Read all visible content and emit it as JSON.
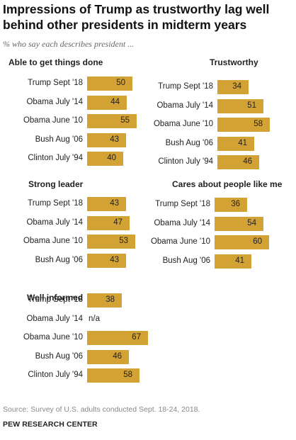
{
  "header": {
    "title": "Impressions of Trump as trustworthy lag well behind other presidents in midterm years",
    "subtitle": "% who say each describes president ..."
  },
  "footer": {
    "source": "Source: Survey of U.S. adults conducted Sept. 18-24, 2018.",
    "org": "PEW RESEARCH CENTER"
  },
  "colors": {
    "bar": "#d3a235"
  },
  "chart_data": [
    {
      "type": "bar",
      "orientation": "horizontal",
      "title": "Able to get things done",
      "categories": [
        "Trump Sept '18",
        "Obama July '14",
        "Obama June '10",
        "Bush Aug '06",
        "Clinton July '94"
      ],
      "values": [
        50,
        44,
        55,
        43,
        40
      ],
      "value_labels": [
        "50",
        "44",
        "55",
        "43",
        "40"
      ]
    },
    {
      "type": "bar",
      "orientation": "horizontal",
      "title": "Trustworthy",
      "categories": [
        "Trump Sept '18",
        "Obama July '14",
        "Obama June '10",
        "Bush Aug '06",
        "Clinton July '94"
      ],
      "values": [
        34,
        51,
        58,
        41,
        46
      ],
      "value_labels": [
        "34",
        "51",
        "58",
        "41",
        "46"
      ]
    },
    {
      "type": "bar",
      "orientation": "horizontal",
      "title": "Strong leader",
      "categories": [
        "Trump Sept '18",
        "Obama July '14",
        "Obama June '10",
        "Bush Aug '06"
      ],
      "values": [
        43,
        47,
        53,
        43
      ],
      "value_labels": [
        "43",
        "47",
        "53",
        "43"
      ]
    },
    {
      "type": "bar",
      "orientation": "horizontal",
      "title": "Cares about people like me",
      "categories": [
        "Trump Sept '18",
        "Obama July '14",
        "Obama June '10",
        "Bush Aug '06"
      ],
      "values": [
        36,
        54,
        60,
        41
      ],
      "value_labels": [
        "36",
        "54",
        "60",
        "41"
      ]
    },
    {
      "type": "bar",
      "orientation": "horizontal",
      "title": "Well informed",
      "categories": [
        "Trump Sept '18",
        "Obama July '14",
        "Obama June '10",
        "Bush Aug '06",
        "Clinton July '94"
      ],
      "values": [
        38,
        null,
        67,
        46,
        58
      ],
      "value_labels": [
        "38",
        "n/a",
        "67",
        "46",
        "58"
      ]
    }
  ]
}
